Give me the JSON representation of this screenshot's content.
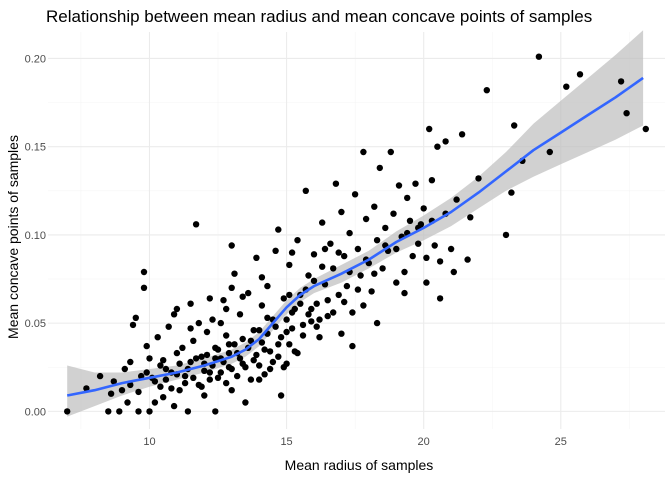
{
  "chart_data": {
    "type": "scatter",
    "title": "Relationship between mean radius and mean concave points of samples",
    "xlabel": "Mean radius of samples",
    "ylabel": "Mean concave points of samples",
    "xlim": [
      6.3,
      28.8
    ],
    "ylim": [
      -0.01,
      0.215
    ],
    "x_ticks": [
      10,
      15,
      20,
      25
    ],
    "y_ticks": [
      0.0,
      0.05,
      0.1,
      0.15,
      0.2
    ],
    "x_tick_labels": [
      "10",
      "15",
      "20",
      "25"
    ],
    "y_tick_labels": [
      "0.00",
      "0.05",
      "0.10",
      "0.15",
      "0.20"
    ],
    "grid": true,
    "point_color": "#000000",
    "smooth_color": "#3366ff",
    "ribbon_color": "#bdbdbd",
    "points": [
      [
        7.0,
        0.0
      ],
      [
        7.7,
        0.013
      ],
      [
        8.2,
        0.02
      ],
      [
        8.5,
        0.0
      ],
      [
        8.6,
        0.01
      ],
      [
        8.7,
        0.017
      ],
      [
        8.9,
        0.0
      ],
      [
        9.0,
        0.012
      ],
      [
        9.1,
        0.024
      ],
      [
        9.2,
        0.005
      ],
      [
        9.3,
        0.028
      ],
      [
        9.4,
        0.049
      ],
      [
        9.5,
        0.053
      ],
      [
        9.6,
        0.0
      ],
      [
        9.7,
        0.02
      ],
      [
        9.8,
        0.07
      ],
      [
        9.8,
        0.079
      ],
      [
        9.9,
        0.037
      ],
      [
        10.0,
        0.03
      ],
      [
        10.0,
        0.0
      ],
      [
        10.1,
        0.019
      ],
      [
        10.2,
        0.005
      ],
      [
        10.3,
        0.042
      ],
      [
        10.4,
        0.014
      ],
      [
        10.5,
        0.029
      ],
      [
        10.5,
        0.008
      ],
      [
        10.6,
        0.024
      ],
      [
        10.7,
        0.048
      ],
      [
        10.8,
        0.022
      ],
      [
        10.9,
        0.003
      ],
      [
        11.0,
        0.033
      ],
      [
        11.0,
        0.058
      ],
      [
        11.1,
        0.012
      ],
      [
        11.2,
        0.036
      ],
      [
        11.3,
        0.02
      ],
      [
        11.4,
        0.0
      ],
      [
        11.5,
        0.061
      ],
      [
        11.5,
        0.028
      ],
      [
        11.6,
        0.04
      ],
      [
        11.7,
        0.106
      ],
      [
        11.8,
        0.015
      ],
      [
        11.9,
        0.031
      ],
      [
        12.0,
        0.027
      ],
      [
        12.0,
        0.009
      ],
      [
        12.1,
        0.045
      ],
      [
        12.2,
        0.022
      ],
      [
        12.3,
        0.052
      ],
      [
        12.4,
        0.036
      ],
      [
        12.4,
        0.0
      ],
      [
        12.5,
        0.019
      ],
      [
        12.6,
        0.03
      ],
      [
        12.7,
        0.063
      ],
      [
        12.8,
        0.043
      ],
      [
        12.9,
        0.025
      ],
      [
        13.0,
        0.094
      ],
      [
        13.0,
        0.012
      ],
      [
        13.1,
        0.078
      ],
      [
        13.2,
        0.033
      ],
      [
        13.3,
        0.055
      ],
      [
        13.4,
        0.027
      ],
      [
        13.5,
        0.005
      ],
      [
        13.6,
        0.067
      ],
      [
        13.7,
        0.04
      ],
      [
        13.8,
        0.029
      ],
      [
        13.9,
        0.087
      ],
      [
        14.0,
        0.046
      ],
      [
        14.0,
        0.018
      ],
      [
        14.1,
        0.06
      ],
      [
        14.2,
        0.035
      ],
      [
        14.3,
        0.071
      ],
      [
        14.4,
        0.024
      ],
      [
        14.5,
        0.052
      ],
      [
        14.6,
        0.091
      ],
      [
        14.7,
        0.038
      ],
      [
        14.8,
        0.009
      ],
      [
        14.9,
        0.064
      ],
      [
        15.0,
        0.045
      ],
      [
        15.0,
        0.027
      ],
      [
        15.1,
        0.083
      ],
      [
        15.2,
        0.056
      ],
      [
        15.3,
        0.034
      ],
      [
        15.4,
        0.097
      ],
      [
        15.5,
        0.066
      ],
      [
        15.6,
        0.043
      ],
      [
        15.7,
        0.125
      ],
      [
        15.8,
        0.077
      ],
      [
        15.9,
        0.051
      ],
      [
        16.0,
        0.089
      ],
      [
        16.1,
        0.061
      ],
      [
        16.2,
        0.042
      ],
      [
        16.3,
        0.107
      ],
      [
        16.4,
        0.072
      ],
      [
        16.5,
        0.054
      ],
      [
        16.6,
        0.095
      ],
      [
        16.7,
        0.081
      ],
      [
        16.8,
        0.129
      ],
      [
        16.9,
        0.066
      ],
      [
        17.0,
        0.113
      ],
      [
        17.1,
        0.088
      ],
      [
        17.2,
        0.071
      ],
      [
        17.3,
        0.101
      ],
      [
        17.4,
        0.056
      ],
      [
        17.5,
        0.123
      ],
      [
        17.6,
        0.092
      ],
      [
        17.7,
        0.077
      ],
      [
        17.8,
        0.147
      ],
      [
        17.9,
        0.109
      ],
      [
        18.0,
        0.084
      ],
      [
        18.1,
        0.068
      ],
      [
        18.2,
        0.116
      ],
      [
        18.3,
        0.097
      ],
      [
        18.4,
        0.138
      ],
      [
        18.5,
        0.081
      ],
      [
        18.6,
        0.104
      ],
      [
        18.7,
        0.091
      ],
      [
        18.8,
        0.147
      ],
      [
        18.9,
        0.112
      ],
      [
        19.0,
        0.073
      ],
      [
        19.1,
        0.128
      ],
      [
        19.2,
        0.099
      ],
      [
        19.3,
        0.079
      ],
      [
        19.4,
        0.121
      ],
      [
        19.5,
        0.108
      ],
      [
        19.6,
        0.088
      ],
      [
        19.7,
        0.129
      ],
      [
        19.8,
        0.095
      ],
      [
        19.9,
        0.106
      ],
      [
        20.0,
        0.115
      ],
      [
        20.1,
        0.087
      ],
      [
        20.2,
        0.16
      ],
      [
        20.3,
        0.131
      ],
      [
        20.4,
        0.094
      ],
      [
        20.5,
        0.15
      ],
      [
        20.6,
        0.085
      ],
      [
        20.8,
        0.153
      ],
      [
        21.0,
        0.092
      ],
      [
        21.2,
        0.12
      ],
      [
        21.4,
        0.157
      ],
      [
        21.7,
        0.11
      ],
      [
        22.0,
        0.132
      ],
      [
        22.3,
        0.182
      ],
      [
        23.0,
        0.1
      ],
      [
        23.2,
        0.124
      ],
      [
        23.3,
        0.162
      ],
      [
        23.6,
        0.142
      ],
      [
        24.2,
        0.201
      ],
      [
        24.6,
        0.147
      ],
      [
        25.2,
        0.184
      ],
      [
        25.7,
        0.191
      ],
      [
        27.2,
        0.187
      ],
      [
        27.4,
        0.169
      ],
      [
        28.1,
        0.16
      ],
      [
        9.3,
        0.015
      ],
      [
        9.6,
        0.011
      ],
      [
        9.9,
        0.022
      ],
      [
        10.2,
        0.017
      ],
      [
        10.4,
        0.026
      ],
      [
        10.6,
        0.018
      ],
      [
        10.8,
        0.013
      ],
      [
        11.0,
        0.021
      ],
      [
        11.1,
        0.027
      ],
      [
        11.3,
        0.016
      ],
      [
        11.4,
        0.024
      ],
      [
        11.6,
        0.019
      ],
      [
        11.7,
        0.03
      ],
      [
        11.9,
        0.014
      ],
      [
        12.0,
        0.023
      ],
      [
        12.1,
        0.032
      ],
      [
        12.2,
        0.018
      ],
      [
        12.3,
        0.026
      ],
      [
        12.4,
        0.03
      ],
      [
        12.5,
        0.035
      ],
      [
        12.6,
        0.022
      ],
      [
        12.7,
        0.028
      ],
      [
        12.8,
        0.016
      ],
      [
        12.9,
        0.033
      ],
      [
        13.0,
        0.024
      ],
      [
        13.1,
        0.038
      ],
      [
        13.2,
        0.02
      ],
      [
        13.3,
        0.03
      ],
      [
        13.4,
        0.041
      ],
      [
        13.5,
        0.025
      ],
      [
        13.6,
        0.036
      ],
      [
        13.7,
        0.018
      ],
      [
        13.8,
        0.046
      ],
      [
        13.9,
        0.032
      ],
      [
        14.0,
        0.026
      ],
      [
        14.1,
        0.039
      ],
      [
        14.2,
        0.021
      ],
      [
        14.3,
        0.044
      ],
      [
        14.4,
        0.034
      ],
      [
        14.5,
        0.028
      ],
      [
        14.6,
        0.048
      ],
      [
        14.7,
        0.031
      ],
      [
        14.8,
        0.042
      ],
      [
        14.9,
        0.025
      ],
      [
        15.0,
        0.052
      ],
      [
        15.1,
        0.038
      ],
      [
        15.2,
        0.047
      ],
      [
        15.3,
        0.058
      ],
      [
        15.4,
        0.033
      ],
      [
        15.5,
        0.061
      ],
      [
        15.6,
        0.049
      ],
      [
        15.7,
        0.069
      ],
      [
        15.8,
        0.055
      ],
      [
        16.0,
        0.074
      ],
      [
        16.1,
        0.048
      ],
      [
        16.3,
        0.082
      ],
      [
        16.5,
        0.063
      ],
      [
        16.7,
        0.056
      ],
      [
        16.9,
        0.09
      ],
      [
        17.1,
        0.062
      ],
      [
        17.3,
        0.079
      ],
      [
        17.6,
        0.069
      ],
      [
        17.9,
        0.086
      ],
      [
        18.2,
        0.078
      ],
      [
        18.6,
        0.094
      ],
      [
        19.0,
        0.092
      ],
      [
        19.4,
        0.101
      ],
      [
        19.8,
        0.104
      ],
      [
        20.3,
        0.108
      ],
      [
        20.8,
        0.112
      ],
      [
        12.6,
        0.05
      ],
      [
        13.4,
        0.065
      ],
      [
        11.5,
        0.047
      ],
      [
        12.2,
        0.064
      ],
      [
        14.1,
        0.076
      ],
      [
        15.2,
        0.09
      ],
      [
        14.7,
        0.103
      ],
      [
        15.9,
        0.058
      ],
      [
        13.0,
        0.07
      ],
      [
        12.8,
        0.058
      ],
      [
        16.4,
        0.092
      ],
      [
        17.8,
        0.06
      ],
      [
        18.3,
        0.05
      ],
      [
        19.3,
        0.067
      ],
      [
        20.1,
        0.073
      ],
      [
        20.6,
        0.064
      ],
      [
        21.1,
        0.079
      ],
      [
        21.6,
        0.086
      ],
      [
        10.9,
        0.055
      ],
      [
        11.8,
        0.05
      ],
      [
        12.9,
        0.038
      ],
      [
        14.3,
        0.053
      ],
      [
        15.1,
        0.066
      ],
      [
        16.2,
        0.052
      ],
      [
        17.0,
        0.044
      ],
      [
        17.4,
        0.037
      ]
    ],
    "smooth_line": [
      [
        7.0,
        0.009
      ],
      [
        8.0,
        0.012
      ],
      [
        9.0,
        0.016
      ],
      [
        10.0,
        0.019
      ],
      [
        11.0,
        0.022
      ],
      [
        12.0,
        0.026
      ],
      [
        13.0,
        0.031
      ],
      [
        13.5,
        0.035
      ],
      [
        14.0,
        0.041
      ],
      [
        14.5,
        0.05
      ],
      [
        15.0,
        0.059
      ],
      [
        15.5,
        0.066
      ],
      [
        16.0,
        0.071
      ],
      [
        17.0,
        0.078
      ],
      [
        18.0,
        0.086
      ],
      [
        19.0,
        0.096
      ],
      [
        20.0,
        0.104
      ],
      [
        21.0,
        0.113
      ],
      [
        22.0,
        0.124
      ],
      [
        23.0,
        0.136
      ],
      [
        24.0,
        0.148
      ],
      [
        25.0,
        0.158
      ],
      [
        26.0,
        0.168
      ],
      [
        27.0,
        0.178
      ],
      [
        28.0,
        0.189
      ]
    ],
    "ribbon": [
      [
        7.0,
        -0.003,
        0.026
      ],
      [
        8.0,
        0.003,
        0.022
      ],
      [
        9.0,
        0.009,
        0.022
      ],
      [
        10.0,
        0.014,
        0.024
      ],
      [
        11.0,
        0.018,
        0.026
      ],
      [
        12.0,
        0.022,
        0.03
      ],
      [
        13.0,
        0.027,
        0.035
      ],
      [
        13.5,
        0.031,
        0.039
      ],
      [
        14.0,
        0.037,
        0.045
      ],
      [
        14.5,
        0.046,
        0.054
      ],
      [
        15.0,
        0.055,
        0.063
      ],
      [
        15.5,
        0.062,
        0.07
      ],
      [
        16.0,
        0.067,
        0.075
      ],
      [
        17.0,
        0.073,
        0.083
      ],
      [
        18.0,
        0.081,
        0.091
      ],
      [
        19.0,
        0.09,
        0.102
      ],
      [
        20.0,
        0.097,
        0.111
      ],
      [
        21.0,
        0.105,
        0.121
      ],
      [
        22.0,
        0.115,
        0.133
      ],
      [
        23.0,
        0.125,
        0.147
      ],
      [
        24.0,
        0.133,
        0.163
      ],
      [
        25.0,
        0.14,
        0.176
      ],
      [
        26.0,
        0.147,
        0.189
      ],
      [
        27.0,
        0.154,
        0.202
      ],
      [
        28.0,
        0.162,
        0.216
      ]
    ]
  }
}
